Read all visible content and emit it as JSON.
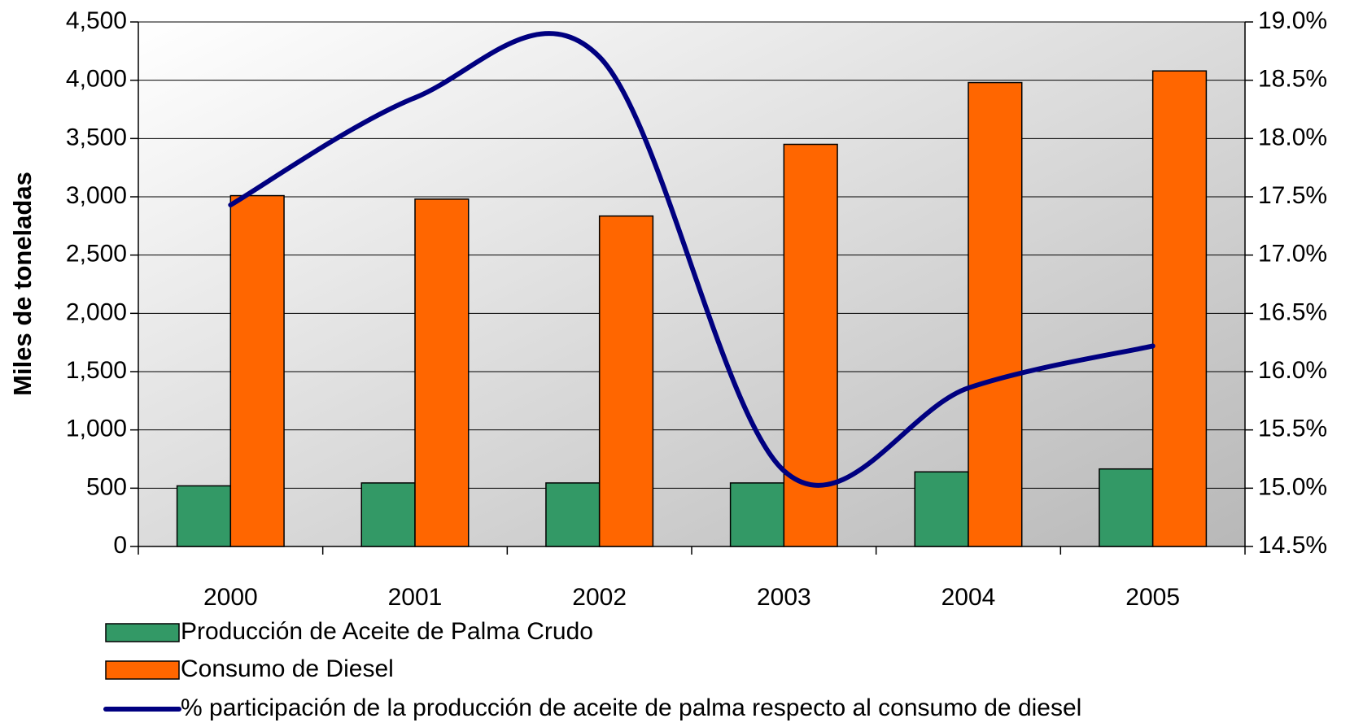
{
  "chart_data": {
    "type": "bar",
    "y_axis_label": "Miles de toneladas",
    "categories": [
      "2000",
      "2001",
      "2002",
      "2003",
      "2004",
      "2005"
    ],
    "series": [
      {
        "name": "Producción de Aceite de Palma Crudo",
        "color": "#339966",
        "values": [
          520,
          545,
          545,
          545,
          640,
          665
        ]
      },
      {
        "name": "Consumo de Diesel",
        "color": "#ff6600",
        "values": [
          3010,
          2980,
          2835,
          3450,
          3980,
          4080
        ]
      },
      {
        "name": "% participación de la producción de aceite de palma respecto al consumo de diesel",
        "color": "#000080",
        "type": "line",
        "axis": "y2",
        "values": [
          17.43,
          18.35,
          18.7,
          15.15,
          15.86,
          16.22
        ]
      }
    ],
    "ylim": [
      0,
      4500
    ],
    "yticks": [
      0,
      500,
      {
        "value": 1000,
        "label": "1,000"
      },
      {
        "value": 1500,
        "label": "1,500"
      },
      {
        "value": 2000,
        "label": "2,000"
      },
      {
        "value": 2500,
        "label": "2,500"
      },
      {
        "value": 3000,
        "label": "3,000"
      },
      {
        "value": 3500,
        "label": "3,500"
      },
      {
        "value": 4000,
        "label": "4,000"
      },
      {
        "value": 4500,
        "label": "4,500"
      }
    ],
    "y2lim": [
      14.5,
      19.0
    ],
    "y2ticks": [
      {
        "value": 14.5,
        "label": "14.5%"
      },
      {
        "value": 15.0,
        "label": "15.0%"
      },
      {
        "value": 15.5,
        "label": "15.5%"
      },
      {
        "value": 16.0,
        "label": "16.0%"
      },
      {
        "value": 16.5,
        "label": "16.5%"
      },
      {
        "value": 17.0,
        "label": "17.0%"
      },
      {
        "value": 17.5,
        "label": "17.5%"
      },
      {
        "value": 18.0,
        "label": "18.0%"
      },
      {
        "value": 18.5,
        "label": "18.5%"
      },
      {
        "value": 19.0,
        "label": "19.0%"
      }
    ],
    "grid": true,
    "legend": "bottom"
  }
}
